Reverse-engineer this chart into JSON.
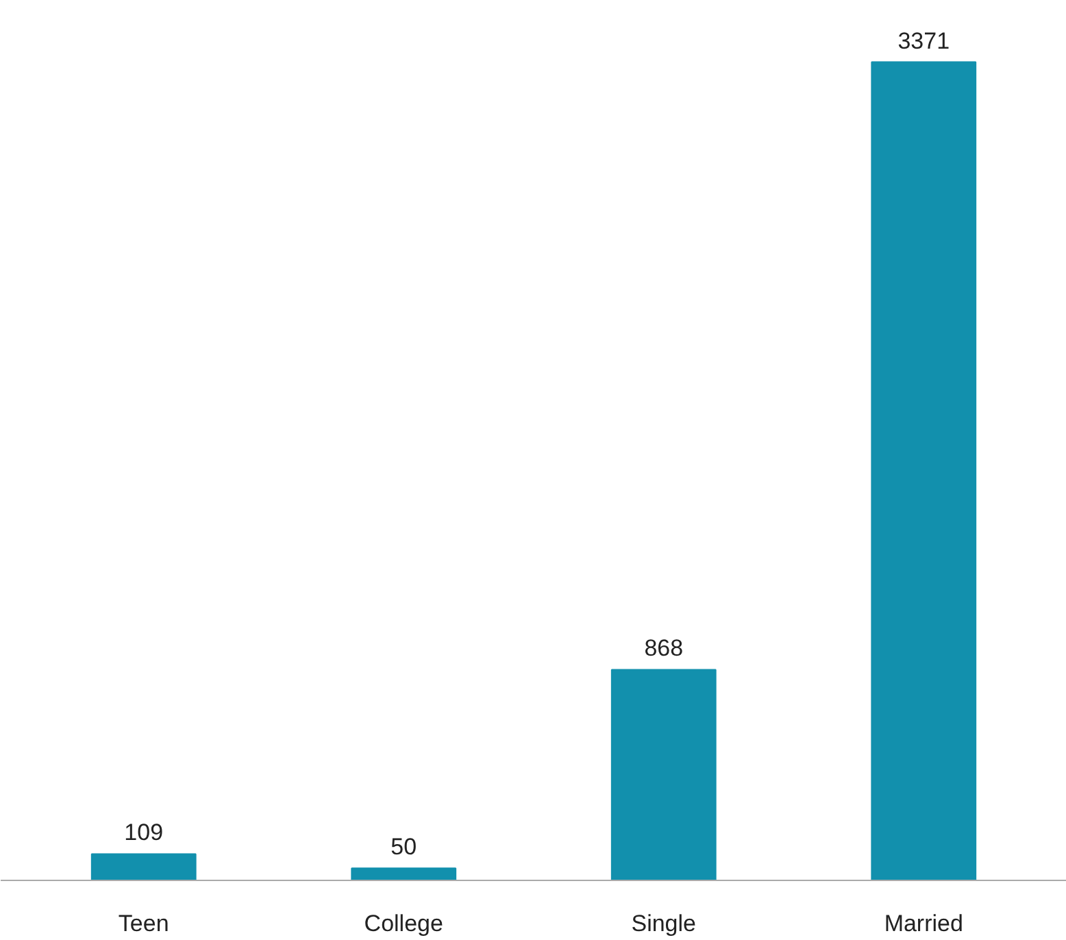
{
  "chart_data": {
    "type": "bar",
    "categories": [
      "Teen",
      "College",
      "Single",
      "Married"
    ],
    "values": [
      109,
      50,
      868,
      3371
    ],
    "color": "#1290ad",
    "data_labels": true,
    "grid": false
  }
}
